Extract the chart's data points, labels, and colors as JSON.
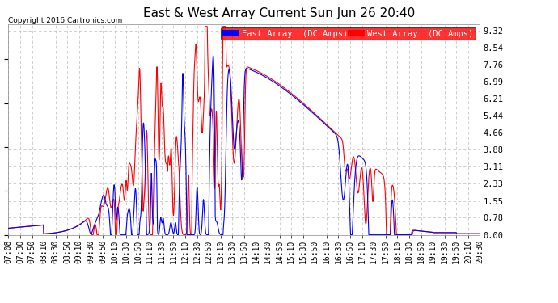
{
  "title": "East & West Array Current Sun Jun 26 20:40",
  "copyright": "Copyright 2016 Cartronics.com",
  "legend": [
    "East Array  (DC Amps)",
    "West Array  (DC Amps)"
  ],
  "east_color": "#0000ff",
  "west_color": "#ff0000",
  "yticks": [
    0.0,
    0.78,
    1.55,
    2.33,
    3.11,
    3.88,
    4.66,
    5.44,
    6.21,
    6.99,
    7.76,
    8.54,
    9.32
  ],
  "ylim": [
    0.0,
    9.6
  ],
  "bg_color": "#ffffff",
  "plot_bg": "#ffffff",
  "grid_color": "#bbbbbb",
  "xtick_labels": [
    "07:08",
    "07:30",
    "07:50",
    "08:10",
    "08:30",
    "08:50",
    "09:10",
    "09:30",
    "09:50",
    "10:10",
    "10:30",
    "10:50",
    "11:10",
    "11:30",
    "11:50",
    "12:10",
    "12:30",
    "12:50",
    "13:10",
    "13:30",
    "13:50",
    "14:10",
    "14:30",
    "14:50",
    "15:10",
    "15:30",
    "15:50",
    "16:10",
    "16:30",
    "16:50",
    "17:10",
    "17:30",
    "17:50",
    "18:10",
    "18:30",
    "18:50",
    "19:10",
    "19:30",
    "19:50",
    "20:10",
    "20:30"
  ],
  "title_fontsize": 11,
  "tick_fontsize": 7,
  "legend_fontsize": 7.5,
  "linewidth": 0.8
}
